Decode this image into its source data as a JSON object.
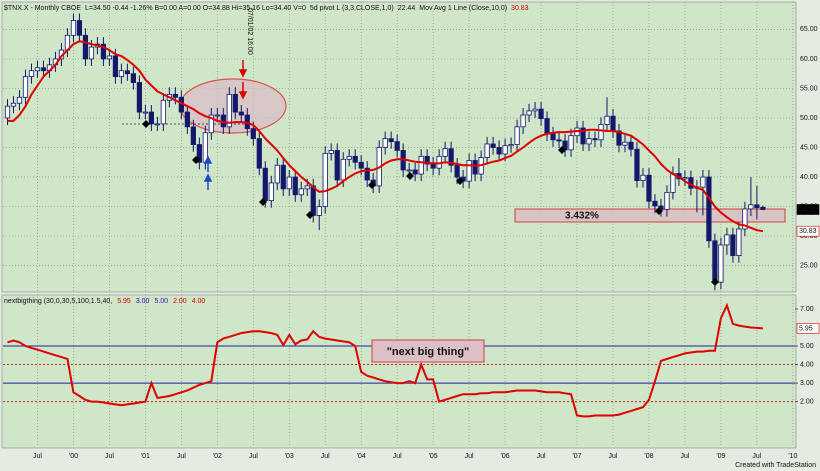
{
  "header": {
    "symbol": "$TNX.X - Monthly CBOE",
    "quote": "L=34.50 -0.44 -1.26% B=0.00 A=0.00 O=34.88 Hi=35.16 Lo=34.40 V=0",
    "pivot": "5d pivot L (3,3,CLOSE,1,0)",
    "pivot_value": "22.44",
    "ma": "Mov Avg 1 Line (Close,10,0)",
    "ma_value": "30.83"
  },
  "footer": "Created with TradeStation",
  "chart_data": [
    {
      "type": "candlestick",
      "categories": [
        null,
        null,
        null,
        null,
        null,
        "Jul",
        null,
        null,
        null,
        null,
        null,
        "'00",
        null,
        null,
        null,
        null,
        null,
        "Jul",
        null,
        null,
        null,
        null,
        null,
        "'01",
        null,
        null,
        null,
        null,
        null,
        "Jul",
        null,
        null,
        null,
        null,
        null,
        "'02",
        null,
        null,
        null,
        null,
        null,
        "Jul",
        null,
        null,
        null,
        null,
        null,
        "'03",
        null,
        null,
        null,
        null,
        null,
        "Jul",
        null,
        null,
        null,
        null,
        null,
        "'04",
        null,
        null,
        null,
        null,
        null,
        "Jul",
        null,
        null,
        null,
        null,
        null,
        "'05",
        null,
        null,
        null,
        null,
        null,
        "Jul",
        null,
        null,
        null,
        null,
        null,
        "'06",
        null,
        null,
        null,
        null,
        null,
        "Jul",
        null,
        null,
        null,
        null,
        null,
        "'07",
        null,
        null,
        null,
        null,
        null,
        "Jul",
        null,
        null,
        null,
        null,
        null,
        "'08",
        null,
        null,
        null,
        null,
        null,
        "Jul",
        null,
        null,
        null,
        null,
        null,
        "'09",
        null,
        null,
        null,
        null,
        null,
        "Jul",
        null,
        null,
        null,
        null,
        null,
        "'10"
      ],
      "open": [
        50,
        52,
        52.5,
        53.5,
        57,
        58,
        58.5,
        58,
        59,
        60,
        61.5,
        64,
        66.5,
        64,
        60,
        62,
        62.5,
        60,
        60.5,
        57,
        58,
        57.5,
        56,
        51,
        51,
        49,
        49,
        53,
        54,
        53.5,
        51,
        48.5,
        45.5,
        42.5,
        47.5,
        50.5,
        50.5,
        48.5,
        54,
        51,
        50.5,
        48.2,
        46.5,
        41.5,
        36,
        39,
        42,
        38,
        40,
        37,
        38,
        38.5,
        33.5,
        35,
        44,
        44.5,
        39.5,
        43,
        43.5,
        42.5,
        41.5,
        39.5,
        38.5,
        45,
        46.5,
        46,
        44.5,
        41.2,
        41.2,
        40.5,
        43.5,
        42.2,
        41.5,
        43.5,
        44.8,
        42,
        40,
        39.3,
        42.8,
        40.5,
        43.3,
        45.6,
        45,
        43.9,
        45.3,
        45.5,
        48.5,
        50.5,
        51.2,
        51.5,
        49.9,
        47.3,
        46.3,
        46.1,
        44.6,
        47,
        48.3,
        45.6,
        46.5,
        46.3,
        48.9,
        50.3,
        47.8,
        45.4,
        45.9,
        44.7,
        39.4,
        40.3,
        35.9,
        35.1,
        34.5,
        37.4,
        40.6,
        39.7,
        39.9,
        38.1,
        38.3,
        40,
        29.2,
        22.2,
        28.5,
        30.2,
        26.7,
        31.2,
        34.6,
        35.3,
        34.88,
        null,
        null,
        null,
        null,
        null
      ],
      "high": [
        53.2,
        53.7,
        54.7,
        58.2,
        59.2,
        59.7,
        59.7,
        60.2,
        61.2,
        62.7,
        65.2,
        67.7,
        67.7,
        65.2,
        63.2,
        63.7,
        63.7,
        61.7,
        61.7,
        59.2,
        59.2,
        58.7,
        57.2,
        52.2,
        52.2,
        50.2,
        54.2,
        55.2,
        55.2,
        54.7,
        52.2,
        49.7,
        46.7,
        48.7,
        51.7,
        51.7,
        51.7,
        55.2,
        55.2,
        52.2,
        51.7,
        49.4,
        47.7,
        42.7,
        40.2,
        43.2,
        43.2,
        41.2,
        41.2,
        39.2,
        39.7,
        39.7,
        36.2,
        45.2,
        45.7,
        45.7,
        44.2,
        44.7,
        44.7,
        43.7,
        42.7,
        40.7,
        46.2,
        47.7,
        47.7,
        47.2,
        45.7,
        42.4,
        42.4,
        44.7,
        44.7,
        43.4,
        44.7,
        46,
        46,
        43.2,
        41.2,
        44,
        44,
        44.5,
        46.8,
        46.8,
        46.2,
        46.5,
        46.7,
        49.7,
        51.7,
        52.4,
        52.7,
        52.7,
        51.1,
        48.5,
        47.5,
        47.3,
        48.2,
        49.5,
        49.5,
        47.7,
        47.7,
        50.1,
        53.5,
        51.5,
        49,
        47.1,
        47.1,
        45.9,
        41.5,
        41.5,
        37.1,
        36.3,
        38.6,
        41.8,
        43.2,
        41.1,
        41.1,
        39.5,
        41.2,
        41.2,
        30.4,
        29.7,
        31.4,
        31.4,
        32.4,
        35.8,
        40,
        38.5,
        35.16,
        null,
        null,
        null,
        null,
        null
      ],
      "low": [
        48.8,
        50.8,
        51.3,
        52.3,
        55.8,
        56.8,
        56.8,
        56.8,
        57.8,
        58.8,
        60.3,
        62.8,
        62.8,
        58.8,
        58.8,
        60.8,
        58.8,
        58.8,
        55.8,
        55.8,
        56.3,
        54.8,
        49.8,
        49.8,
        47.8,
        47.8,
        47.8,
        51.8,
        52.3,
        49.8,
        47.3,
        44.3,
        41.3,
        41.3,
        46.3,
        49.3,
        47.3,
        47.3,
        49.8,
        49.3,
        47,
        45.3,
        40.3,
        34.8,
        34.8,
        37.8,
        36.8,
        36.8,
        35.8,
        35.8,
        36.8,
        32.3,
        31,
        33.8,
        42.8,
        38.3,
        38.3,
        41.8,
        41.3,
        40.3,
        38.3,
        37.3,
        37.3,
        43.8,
        44.8,
        43.3,
        40,
        40,
        39.3,
        39.3,
        41,
        40.3,
        40.3,
        42.3,
        40.8,
        38.8,
        38.1,
        38.1,
        39.3,
        39.3,
        42.1,
        43.8,
        42.7,
        42.7,
        44.1,
        44.3,
        47.3,
        49.3,
        50,
        48.7,
        46.1,
        45.1,
        44.9,
        43.4,
        43.4,
        45.8,
        44.4,
        44.4,
        45.1,
        45.1,
        47.7,
        46.6,
        44.2,
        44.2,
        43.5,
        38.2,
        38.2,
        34.7,
        33.9,
        33.3,
        33.3,
        36.2,
        38.5,
        38.5,
        36.9,
        34,
        33.5,
        28,
        20.8,
        21,
        26.8,
        25.5,
        25.5,
        30,
        33.4,
        32.8,
        34.4,
        null,
        null,
        null,
        null,
        null
      ],
      "close": [
        52,
        52.5,
        53.5,
        57,
        58,
        58.5,
        58,
        59,
        60,
        61.5,
        64,
        66.5,
        64,
        60,
        62,
        62.5,
        60,
        60.5,
        57,
        58,
        57.5,
        56,
        51,
        51,
        49,
        49,
        53,
        54,
        53.5,
        51,
        48.5,
        45.5,
        42.5,
        47.5,
        50.5,
        50.5,
        48.5,
        54,
        51,
        50.5,
        48.2,
        46.5,
        41.5,
        36,
        39,
        42,
        38,
        40,
        37,
        38,
        38.5,
        33.5,
        35,
        44,
        44.5,
        39.5,
        43,
        43.5,
        42.5,
        41.5,
        39.5,
        38.5,
        45,
        46.5,
        46,
        44.5,
        41.2,
        41.2,
        40.5,
        43.5,
        42.2,
        41.5,
        43.5,
        44.8,
        42,
        40,
        39.3,
        42.8,
        40.5,
        43.3,
        45.6,
        45,
        43.9,
        45.3,
        45.5,
        48.5,
        50.5,
        51.2,
        51.5,
        49.9,
        47.3,
        46.3,
        46.1,
        44.6,
        47,
        48.3,
        45.6,
        46.5,
        46.3,
        48.9,
        50.3,
        47.8,
        45.4,
        45.9,
        44.7,
        39.4,
        40.3,
        35.9,
        35.1,
        34.5,
        37.4,
        40.6,
        39.7,
        39.9,
        38.1,
        38.3,
        40,
        29.2,
        22.2,
        28.5,
        30.2,
        26.7,
        31.2,
        34.6,
        35.3,
        34.8,
        34.5,
        null,
        null,
        null,
        null,
        null
      ],
      "up_color": "#ffffff",
      "down_color": "#14186a",
      "ma_color": "#e00000",
      "ma": [
        49.5,
        49.5,
        50.5,
        52,
        54,
        55.5,
        57,
        58,
        59,
        60.5,
        61.5,
        62.5,
        63,
        62.8,
        62.5,
        62.3,
        62,
        61.5,
        60.8,
        60.5,
        59.8,
        59,
        58,
        56.5,
        55.5,
        54.5,
        54,
        53.5,
        53,
        52.5,
        52,
        51.5,
        50.8,
        50.3,
        50,
        49.5,
        49.3,
        49.2,
        49.3,
        49.3,
        49.2,
        48.8,
        47.8,
        46.5,
        45.5,
        44.5,
        43.2,
        42,
        41,
        40,
        39.2,
        38.3,
        37.5,
        37.6,
        38,
        38.5,
        39.3,
        40,
        40.6,
        41,
        41.1,
        41.2,
        41.6,
        42.3,
        42.8,
        43,
        43,
        42.8,
        42.6,
        42.5,
        42.4,
        42.3,
        42.3,
        42.5,
        42.4,
        42.2,
        42,
        42,
        41.9,
        42,
        42.3,
        42.6,
        42.8,
        43.2,
        43.6,
        44.3,
        45,
        45.8,
        46.5,
        47,
        47.3,
        47.5,
        47.6,
        47.6,
        47.7,
        47.8,
        47.8,
        48,
        48,
        47.9,
        47.8,
        47.8,
        47.6,
        47.3,
        47,
        46.3,
        45.5,
        44.5,
        43.5,
        42.2,
        41.2,
        40.5,
        40,
        39.3,
        38.7,
        38.2,
        37.8,
        36.5,
        35,
        34,
        33.2,
        32.5,
        32,
        31.8,
        31.4,
        31,
        30.83,
        null,
        null,
        null,
        null,
        null
      ],
      "ylim": [
        20.7,
        69.3
      ],
      "yticks": [
        {
          "value": 25,
          "label": "25.00"
        },
        {
          "value": 30,
          "label": "30.00"
        },
        {
          "value": 35,
          "label": "35.00"
        },
        {
          "value": 40,
          "label": "40.00"
        },
        {
          "value": 45,
          "label": "45.00"
        },
        {
          "value": 50,
          "label": "50.00"
        },
        {
          "value": 55,
          "label": "55.00"
        },
        {
          "value": 60,
          "label": "60.00"
        },
        {
          "value": 65,
          "label": "65.00"
        }
      ],
      "marker_labels": [
        {
          "value": 34.5,
          "label": "34.50",
          "color": "#000000"
        },
        {
          "value": 30.83,
          "label": "30.83",
          "color": "#e00000"
        }
      ],
      "annotations": [
        "3.432%",
        "07/01/02 16:00"
      ],
      "grid": true
    },
    {
      "type": "line",
      "title": "nextbigthing (30,0,30,5,100,1.5,40,",
      "legend_values": [
        {
          "label": "5.95",
          "color": "#e00000"
        },
        {
          "label": "3.00",
          "color": "#2020a0"
        },
        {
          "label": "5.00",
          "color": "#2020a0"
        },
        {
          "label": "2.00",
          "color": "#e00000"
        },
        {
          "label": "4.00",
          "color": "#e00000"
        }
      ],
      "color": "#e00000",
      "values": [
        5.2,
        5.3,
        5.2,
        5.0,
        4.9,
        4.8,
        4.7,
        4.6,
        4.5,
        4.4,
        4.3,
        2.5,
        2.3,
        2.1,
        2.0,
        2.0,
        1.95,
        1.9,
        1.85,
        1.8,
        1.85,
        1.9,
        1.95,
        2.0,
        3.0,
        2.2,
        2.25,
        2.3,
        2.4,
        2.5,
        2.6,
        2.75,
        2.9,
        3.0,
        3.1,
        5.2,
        5.4,
        5.5,
        5.6,
        5.7,
        5.75,
        5.8,
        5.8,
        5.75,
        5.7,
        5.6,
        5.05,
        5.6,
        5.1,
        5.3,
        5.35,
        5.8,
        5.5,
        5.4,
        5.35,
        5.3,
        5.25,
        5.2,
        5.0,
        3.6,
        3.4,
        3.3,
        3.2,
        3.1,
        3.05,
        3.0,
        3.0,
        3.1,
        3.0,
        4.0,
        3.2,
        3.2,
        2.0,
        2.1,
        2.2,
        2.3,
        2.4,
        2.4,
        2.4,
        2.45,
        2.45,
        2.5,
        2.5,
        2.5,
        2.55,
        2.6,
        2.6,
        2.6,
        2.6,
        2.55,
        2.5,
        2.5,
        2.5,
        2.45,
        2.4,
        1.25,
        1.2,
        1.2,
        1.25,
        1.25,
        1.25,
        1.25,
        1.3,
        1.4,
        1.5,
        1.6,
        1.7,
        2.1,
        3.1,
        4.2,
        4.3,
        4.4,
        4.5,
        4.6,
        4.65,
        4.7,
        4.7,
        4.75,
        4.75,
        6.5,
        7.2,
        6.2,
        6.1,
        6.05,
        6.0,
        5.98,
        5.95,
        null,
        null,
        null,
        null,
        null
      ],
      "ylim": [
        -0.45,
        7.7
      ],
      "yticks": [
        {
          "value": 2,
          "label": "2.00"
        },
        {
          "value": 3,
          "label": "3.00"
        },
        {
          "value": 4,
          "label": "4.00"
        },
        {
          "value": 5,
          "label": "5.00"
        },
        {
          "value": 7,
          "label": "7.00"
        }
      ],
      "hlines": [
        {
          "value": 5,
          "color": "#2020a0",
          "dashed": false
        },
        {
          "value": 3,
          "color": "#2020a0",
          "dashed": false
        },
        {
          "value": 4,
          "color": "#c02020",
          "dashed": true
        },
        {
          "value": 2,
          "color": "#c02020",
          "dashed": true
        }
      ],
      "marker_labels": [
        {
          "value": 5.95,
          "label": "5.95",
          "color": "#e00000"
        }
      ],
      "annotations": [
        "\"next big thing\""
      ]
    }
  ]
}
